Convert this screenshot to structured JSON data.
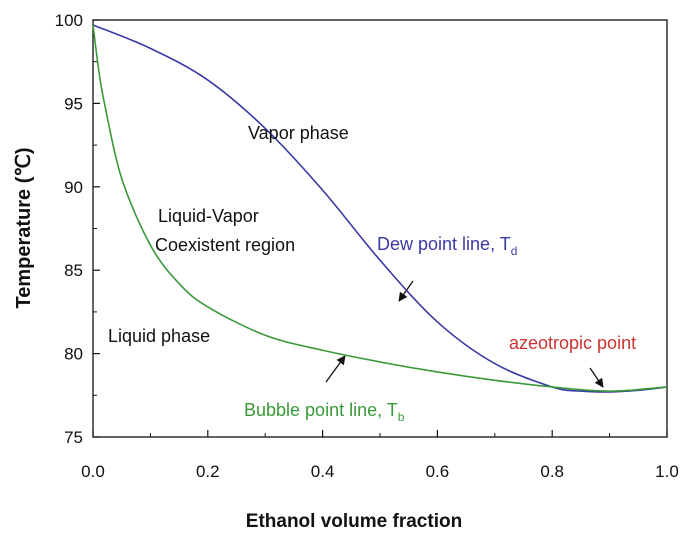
{
  "chart_data": {
    "type": "line",
    "xlabel": "Ethanol volume fraction",
    "ylabel": "Temperature (℃)",
    "x": [
      0,
      0.1,
      0.2,
      0.3,
      0.4,
      0.5,
      0.6,
      0.7,
      0.8,
      0.85,
      0.9,
      0.95,
      1.0
    ],
    "series": [
      {
        "name": "Dew point line",
        "color": "#3a3aa6",
        "x": [
          0,
          0.1,
          0.2,
          0.3,
          0.4,
          0.5,
          0.6,
          0.7,
          0.8,
          0.85,
          0.9,
          0.95,
          1.0
        ],
        "values": [
          99.7,
          98.3,
          96.4,
          93.5,
          89.8,
          85.6,
          81.9,
          79.4,
          78.0,
          77.75,
          77.7,
          77.8,
          78.0
        ]
      },
      {
        "name": "Bubble point line",
        "color": "#3a9a3a",
        "x": [
          0,
          0.01,
          0.02,
          0.05,
          0.1,
          0.15,
          0.2,
          0.3,
          0.4,
          0.5,
          0.6,
          0.7,
          0.8,
          0.9,
          1.0
        ],
        "values": [
          99.7,
          97.0,
          95.0,
          90.5,
          86.5,
          84.2,
          82.8,
          81.1,
          80.2,
          79.5,
          78.9,
          78.4,
          78.0,
          77.75,
          78.0
        ]
      }
    ],
    "xlim": [
      0,
      1.0
    ],
    "xticks": [
      {
        "value": 0,
        "label": "0.0"
      },
      0.2,
      0.4,
      0.6,
      0.8,
      {
        "value": 1,
        "label": "1.0"
      }
    ],
    "ylim": [
      75,
      100
    ],
    "yticks": [
      75,
      80,
      85,
      90,
      95,
      100
    ],
    "annotations": [
      {
        "text": "Vapor phase",
        "color": "#111111"
      },
      {
        "text": "Liquid-Vapor",
        "color": "#111111"
      },
      {
        "text": "Coexistent region",
        "color": "#111111"
      },
      {
        "text": "Liquid phase",
        "color": "#111111"
      },
      {
        "text": "Dew point line, T",
        "sub": "d",
        "color": "#3a3aa6"
      },
      {
        "text": "Bubble point line, T",
        "sub": "b",
        "color": "#3a9a3a"
      },
      {
        "text": "azeotropic point",
        "color": "#cc3333"
      }
    ]
  }
}
